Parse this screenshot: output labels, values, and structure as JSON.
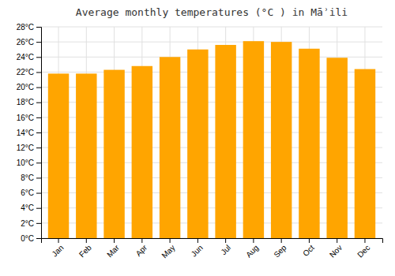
{
  "chart_data": {
    "type": "bar",
    "title": "Average monthly temperatures (°C ) in Māʾili",
    "categories": [
      "Jan",
      "Feb",
      "Mar",
      "Apr",
      "May",
      "Jun",
      "Jul",
      "Aug",
      "Sep",
      "Oct",
      "Nov",
      "Dec"
    ],
    "values": [
      21.8,
      21.8,
      22.3,
      22.8,
      24.0,
      25.0,
      25.6,
      26.1,
      26.0,
      25.1,
      23.9,
      22.4
    ],
    "color": "#FFA500",
    "ylim": [
      0,
      28
    ],
    "yticks": [
      {
        "value": 0,
        "label": "0°C"
      },
      {
        "value": 2,
        "label": "2°C"
      },
      {
        "value": 4,
        "label": "4°C"
      },
      {
        "value": 6,
        "label": "6°C"
      },
      {
        "value": 8,
        "label": "8°C"
      },
      {
        "value": 10,
        "label": "10°C"
      },
      {
        "value": 12,
        "label": "12°C"
      },
      {
        "value": 14,
        "label": "14°C"
      },
      {
        "value": 16,
        "label": "16°C"
      },
      {
        "value": 18,
        "label": "18°C"
      },
      {
        "value": 20,
        "label": "20°C"
      },
      {
        "value": 22,
        "label": "22°C"
      },
      {
        "value": 24,
        "label": "24°C"
      },
      {
        "value": 26,
        "label": "26°C"
      },
      {
        "value": 28,
        "label": "28°C"
      }
    ],
    "grid": true
  }
}
